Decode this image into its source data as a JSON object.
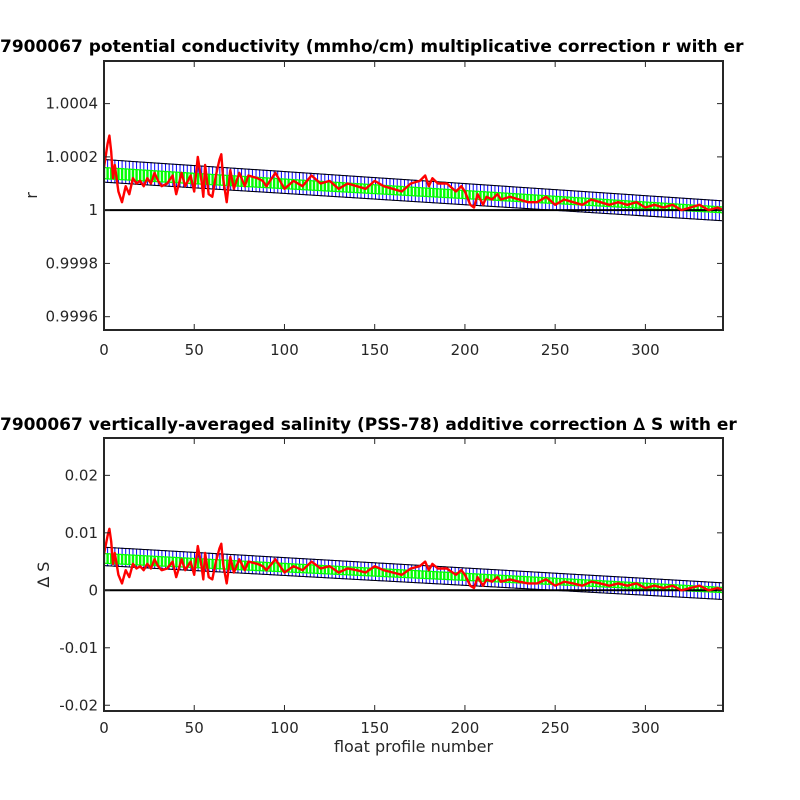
{
  "chart_data": [
    {
      "type": "line",
      "title": "7900067 potential conductivity (mmho/cm) multiplicative correction r with er",
      "xlabel": "",
      "ylabel": "r",
      "xlim": [
        0,
        343
      ],
      "ylim": [
        0.99955,
        1.00056
      ],
      "xticks": [
        0,
        50,
        100,
        150,
        200,
        250,
        300
      ],
      "xtick_labels": [
        "0",
        "50",
        "100",
        "150",
        "200",
        "250",
        "300"
      ],
      "yticks": [
        0.9996,
        0.9998,
        1,
        1.0002,
        1.0004
      ],
      "ytick_labels": [
        "0.9996",
        "0.9998",
        "1",
        "1.0002",
        "1.0004"
      ],
      "colors": {
        "fit_error": "#0000ff",
        "fit": "#00ff00",
        "profile": "#ff0000",
        "reference": "#000000"
      },
      "reference_line": 1,
      "fit_error_band": {
        "x": [
          0,
          343
        ],
        "center": [
          1.000143,
          1.0
        ],
        "upper": [
          1.00019,
          1.000035
        ],
        "lower": [
          1.000105,
          0.99996
        ]
      },
      "fit_band": {
        "x": [
          0,
          343
        ],
        "upper": [
          1.00016,
          1.000012
        ],
        "lower": [
          1.000118,
          0.99999
        ]
      },
      "series": [
        {
          "x": [
            0,
            2,
            3,
            4,
            5,
            6,
            8,
            10,
            12,
            14,
            16,
            18,
            20,
            22,
            24,
            26,
            28,
            30,
            32,
            35,
            38,
            40,
            43,
            45,
            48,
            50,
            52,
            54,
            55,
            56,
            58,
            60,
            62,
            64,
            65,
            66,
            68,
            70,
            72,
            75,
            78,
            80,
            85,
            88,
            90,
            95,
            100,
            105,
            110,
            115,
            120,
            125,
            130,
            135,
            140,
            145,
            150,
            155,
            160,
            165,
            170,
            175,
            178,
            180,
            182,
            185,
            190,
            195,
            198,
            200,
            203,
            205,
            207,
            210,
            212,
            215,
            218,
            220,
            225,
            230,
            235,
            240,
            245,
            250,
            255,
            260,
            265,
            270,
            275,
            280,
            285,
            290,
            295,
            300,
            305,
            310,
            315,
            320,
            325,
            330,
            335,
            340,
            343
          ],
          "values": [
            1.00016,
            1.00025,
            1.00028,
            1.00022,
            1.00012,
            1.00017,
            1.00007,
            1.00003,
            1.00009,
            1.00006,
            1.00012,
            1.0001,
            1.00011,
            1.00009,
            1.00012,
            1.0001,
            1.00014,
            1.00011,
            1.00009,
            1.0001,
            1.00013,
            1.00006,
            1.00014,
            1.00009,
            1.00013,
            1.00007,
            1.0002,
            1.00011,
            1.00005,
            1.00017,
            1.00006,
            1.00005,
            1.00013,
            1.00019,
            1.00021,
            1.00012,
            1.00003,
            1.00015,
            1.00008,
            1.00014,
            1.00009,
            1.00013,
            1.00012,
            1.00011,
            1.00009,
            1.00014,
            1.00008,
            1.00011,
            1.00009,
            1.00013,
            1.0001,
            1.00011,
            1.00008,
            1.0001,
            1.00009,
            1.00008,
            1.00011,
            1.00009,
            1.00008,
            1.00007,
            1.0001,
            1.00011,
            1.00013,
            1.00009,
            1.00012,
            1.0001,
            1.0001,
            1.00007,
            1.00009,
            1.00007,
            1.00002,
            1.00001,
            1.00006,
            1.00002,
            1.00005,
            1.00004,
            1.00006,
            1.00004,
            1.00005,
            1.00004,
            1.00003,
            1.00003,
            1.00005,
            1.00002,
            1.00004,
            1.00003,
            1.00002,
            1.00004,
            1.00003,
            1.00002,
            1.00003,
            1.00002,
            1.00003,
            1.00001,
            1.00002,
            1.00001,
            1.00002,
            1.0,
            1.00001,
            1.00002,
            1.0,
            1.00001,
            1.0
          ]
        }
      ]
    },
    {
      "type": "line",
      "title": "7900067 vertically-averaged salinity (PSS-78) additive correction ∆ S with er",
      "xlabel": "float profile number",
      "ylabel": "∆ S",
      "xlim": [
        0,
        343
      ],
      "ylim": [
        -0.021,
        0.0265
      ],
      "xticks": [
        0,
        50,
        100,
        150,
        200,
        250,
        300
      ],
      "xtick_labels": [
        "0",
        "50",
        "100",
        "150",
        "200",
        "250",
        "300"
      ],
      "yticks": [
        -0.02,
        -0.01,
        0,
        0.01,
        0.02
      ],
      "ytick_labels": [
        "-0.02",
        "-0.01",
        "0",
        "0.01",
        "0.02"
      ],
      "colors": {
        "fit_error": "#0000ff",
        "fit": "#00ff00",
        "profile": "#ff0000",
        "reference": "#000000"
      },
      "reference_line": 0,
      "fit_error_band": {
        "x": [
          0,
          343
        ],
        "center": [
          0.0057,
          0.0
        ],
        "upper": [
          0.0075,
          0.0013
        ],
        "lower": [
          0.0043,
          -0.0016
        ]
      },
      "fit_band": {
        "x": [
          0,
          343
        ],
        "upper": [
          0.0064,
          0.0005
        ],
        "lower": [
          0.0047,
          -0.0004
        ]
      },
      "series": [
        {
          "x": [
            0,
            2,
            3,
            4,
            5,
            6,
            8,
            10,
            12,
            14,
            16,
            18,
            20,
            22,
            24,
            26,
            28,
            30,
            32,
            35,
            38,
            40,
            43,
            45,
            48,
            50,
            52,
            54,
            55,
            56,
            58,
            60,
            62,
            64,
            65,
            66,
            68,
            70,
            72,
            75,
            78,
            80,
            85,
            88,
            90,
            95,
            100,
            105,
            110,
            115,
            120,
            125,
            130,
            135,
            140,
            145,
            150,
            155,
            160,
            165,
            170,
            175,
            178,
            180,
            182,
            185,
            190,
            195,
            198,
            200,
            203,
            205,
            207,
            210,
            212,
            215,
            218,
            220,
            225,
            230,
            235,
            240,
            245,
            250,
            255,
            260,
            265,
            270,
            275,
            280,
            285,
            290,
            295,
            300,
            305,
            310,
            315,
            320,
            325,
            330,
            335,
            340,
            343
          ],
          "values": [
            0.0063,
            0.0095,
            0.0107,
            0.0085,
            0.0046,
            0.0065,
            0.0027,
            0.0012,
            0.0035,
            0.0023,
            0.0046,
            0.0038,
            0.0042,
            0.0035,
            0.0046,
            0.0038,
            0.0054,
            0.0042,
            0.0035,
            0.0038,
            0.005,
            0.0023,
            0.0054,
            0.0035,
            0.005,
            0.0027,
            0.0077,
            0.0042,
            0.0019,
            0.0065,
            0.0023,
            0.0019,
            0.005,
            0.0073,
            0.0081,
            0.0046,
            0.0012,
            0.0058,
            0.0031,
            0.0054,
            0.0035,
            0.005,
            0.0046,
            0.0042,
            0.0035,
            0.0054,
            0.0031,
            0.0042,
            0.0035,
            0.005,
            0.0038,
            0.0042,
            0.0031,
            0.0038,
            0.0035,
            0.0031,
            0.0042,
            0.0035,
            0.0031,
            0.0027,
            0.0038,
            0.0042,
            0.005,
            0.0035,
            0.0046,
            0.0038,
            0.0038,
            0.0027,
            0.0035,
            0.0027,
            0.0008,
            0.0004,
            0.0023,
            0.0008,
            0.0019,
            0.0015,
            0.0023,
            0.0015,
            0.0019,
            0.0015,
            0.0012,
            0.0012,
            0.0019,
            0.0008,
            0.0015,
            0.0012,
            0.0008,
            0.0015,
            0.0012,
            0.0008,
            0.0012,
            0.0008,
            0.0012,
            0.0004,
            0.0008,
            0.0004,
            0.0008,
            0.0,
            0.0004,
            0.0008,
            0.0,
            0.0004,
            0.0
          ]
        }
      ]
    }
  ]
}
